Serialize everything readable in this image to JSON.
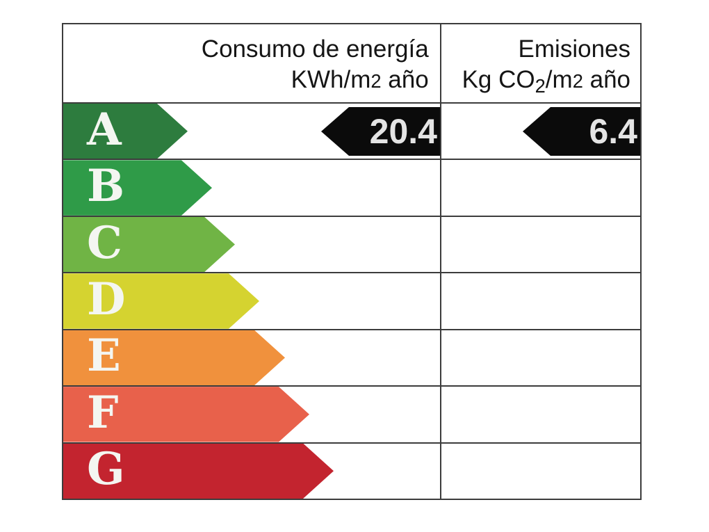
{
  "header": {
    "col1": {
      "line1": "Consumo de energía",
      "line2": {
        "pre": "KWh/m",
        "exp": "2",
        "post": " año"
      }
    },
    "col2": {
      "line1": "Emisiones",
      "line2": {
        "pre": "Kg CO",
        "sub": "2",
        "mid": "/m",
        "exp": "2",
        "post": " año"
      }
    }
  },
  "ratings": [
    {
      "letter": "A",
      "color": "#2d7c3e",
      "arrow_style": "width:179px;background:#2d7c3e"
    },
    {
      "letter": "B",
      "color": "#2f9b48",
      "arrow_style": "width:214px;background:#2f9b48"
    },
    {
      "letter": "C",
      "color": "#70b445",
      "arrow_style": "width:247px;background:#70b445"
    },
    {
      "letter": "D",
      "color": "#d5d330",
      "arrow_style": "width:282px;background:#d5d330"
    },
    {
      "letter": "E",
      "color": "#f0913d",
      "arrow_style": "width:319px;background:#f0913d"
    },
    {
      "letter": "F",
      "color": "#e8614b",
      "arrow_style": "width:354px;background:#e8614b"
    },
    {
      "letter": "G",
      "color": "#c3242f",
      "arrow_style": "width:389px;background:#c3242f"
    }
  ],
  "indicators": {
    "consumption_value": "20.4",
    "emissions_value": "6.4",
    "arrow_color": "#0b0b0b",
    "text_color": "#e4e4e4",
    "style": "background:#0b0b0b;color:#e4e4e4"
  },
  "chart_data": {
    "type": "table",
    "columns": [
      "Consumo de energía KWh/m2 año",
      "Emisiones Kg CO2/m2 año"
    ],
    "rating_scale": [
      "A",
      "B",
      "C",
      "D",
      "E",
      "F",
      "G"
    ],
    "scale_colors": [
      "#2d7c3e",
      "#2f9b48",
      "#70b445",
      "#d5d330",
      "#f0913d",
      "#e8614b",
      "#c3242f"
    ],
    "rated_class": "A",
    "values": {
      "consumo_energia_kwh_m2_ano": 20.4,
      "emisiones_kg_co2_m2_ano": 6.4
    },
    "layout": {
      "indicator_row": "A",
      "indicator_color": "#0b0b0b",
      "grid": "on"
    }
  }
}
